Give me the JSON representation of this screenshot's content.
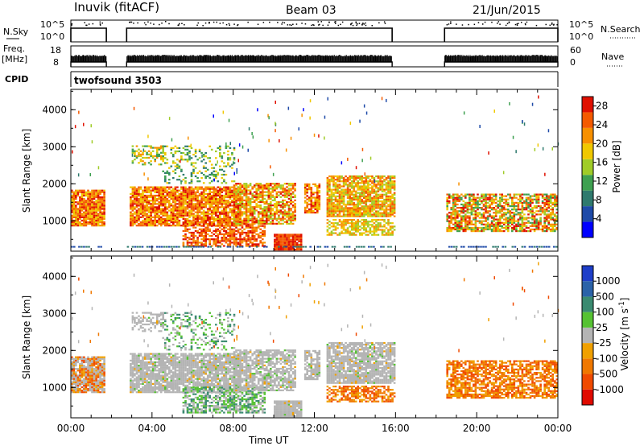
{
  "header": {
    "station": "Inuvik (fitACF)",
    "beam": "Beam 03",
    "date": "21/Jun/2015"
  },
  "strips": {
    "nsky_label": "N.Sky",
    "nsky_ticks": [
      "10^5",
      "10^0"
    ],
    "nsearch_label": "N.Search",
    "nsearch_ticks": [
      "10^5",
      "10^0"
    ],
    "freq_label_1": "Freq.",
    "freq_label_2": "[MHz]",
    "freq_ticks": [
      "18",
      "8"
    ],
    "nave_label": "Nave",
    "nave_ticks": [
      "60",
      "0"
    ],
    "cpid_label": "CPID",
    "cpid_value": "twofsound 3503"
  },
  "colors": {
    "power_scale": [
      "#0000ff",
      "#1e4aa8",
      "#2f7a6e",
      "#3ea050",
      "#a0cc28",
      "#f0c800",
      "#f79000",
      "#f45a00",
      "#e01000"
    ],
    "velocity_scale": [
      "#1e3ec8",
      "#2a62a8",
      "#3a8a70",
      "#56c232",
      "#b4b4b4",
      "#f0a000",
      "#f07800",
      "#f04a00",
      "#e00a00"
    ],
    "ground_scatter": "#b4b4b4"
  },
  "chart_data": [
    {
      "type": "line",
      "title": "N.Sky / N.Search",
      "y_axis_scale": "log",
      "ylim": [
        1,
        100000
      ],
      "x_start": "00:00",
      "x_end": "00:00",
      "observing_intervals_ut": [
        [
          "00:00",
          "01:45"
        ],
        [
          "02:45",
          "15:50"
        ],
        [
          "18:25",
          "00:00"
        ]
      ],
      "approx_level": "10^2"
    },
    {
      "type": "line",
      "title": "Freq. / Nave",
      "left_axis": {
        "label": "Freq. [MHz]",
        "ticks": [
          18,
          8
        ]
      },
      "right_axis": {
        "label": "Nave",
        "ticks": [
          60,
          0
        ]
      },
      "observing_intervals_ut": [
        [
          "00:00",
          "01:45"
        ],
        [
          "02:45",
          "15:50"
        ],
        [
          "18:25",
          "00:00"
        ]
      ]
    },
    {
      "type": "heatmap",
      "title": "Power",
      "xlabel": "Time UT",
      "ylabel": "Slant Range [km]",
      "x_ticks": [
        "00:00",
        "04:00",
        "08:00",
        "12:00",
        "16:00",
        "20:00",
        "00:00"
      ],
      "y_ticks": [
        1000,
        2000,
        3000,
        4000
      ],
      "ylim": [
        180,
        4550
      ],
      "colorbar_label": "Power [dB]",
      "colorbar_ticks": [
        4,
        8,
        12,
        16,
        20,
        24,
        28
      ],
      "colorbar_range": [
        0,
        30
      ]
    },
    {
      "type": "heatmap",
      "title": "Velocity",
      "xlabel": "Time UT",
      "ylabel": "Slant Range [km]",
      "x_ticks": [
        "00:00",
        "04:00",
        "08:00",
        "12:00",
        "16:00",
        "20:00",
        "00:00"
      ],
      "y_ticks": [
        1000,
        2000,
        3000,
        4000
      ],
      "ylim": [
        180,
        4550
      ],
      "colorbar_label": "Velocity [m s^-1]",
      "colorbar_ticks": [
        1000,
        500,
        100,
        25,
        -25,
        -100,
        -500,
        -1000
      ]
    }
  ]
}
